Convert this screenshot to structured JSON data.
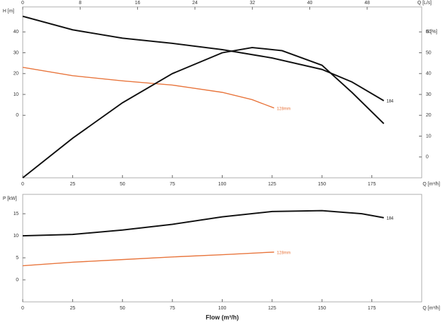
{
  "chart_data": [
    {
      "type": "line",
      "xlabel": "Q [m³/h]",
      "ylabel": "H [m]",
      "y2label": "E [%]",
      "x2label": "Q [L/s]",
      "xlim": [
        0,
        200
      ],
      "xticks": [
        0,
        25,
        50,
        75,
        100,
        125,
        150,
        175
      ],
      "x2lim": [
        0,
        55.6
      ],
      "x2ticks": [
        0,
        8,
        16,
        24,
        32,
        40,
        48
      ],
      "ylim": [
        -30,
        52
      ],
      "yticks": [
        0,
        10,
        20,
        30,
        40
      ],
      "y2lim": [
        -10,
        72
      ],
      "y2ticks": [
        0,
        10,
        20,
        30,
        40,
        50,
        60
      ],
      "series": [
        {
          "name": "184",
          "color": "#111111",
          "x": [
            0,
            25,
            50,
            75,
            100,
            125,
            150,
            165,
            181
          ],
          "values": [
            47.5,
            41,
            37,
            34.5,
            31.5,
            27.5,
            22,
            16,
            7
          ]
        },
        {
          "name": "128mm",
          "color": "#e8743b",
          "x": [
            0,
            25,
            50,
            75,
            100,
            115,
            126
          ],
          "values": [
            23,
            19,
            16.5,
            14.5,
            11,
            7.5,
            3.5
          ]
        },
        {
          "name": "E",
          "color": "#111111",
          "axis": "y2",
          "x": [
            0,
            25,
            50,
            75,
            100,
            115,
            130,
            150,
            165,
            181
          ],
          "values": [
            -10,
            9,
            26,
            40,
            50,
            52.5,
            51,
            44,
            31,
            16
          ]
        }
      ]
    },
    {
      "type": "line",
      "xlabel": "Q [m³/h]",
      "ylabel": "P [kW]",
      "title": "Flow (m³/h)",
      "xlim": [
        0,
        200
      ],
      "xticks": [
        0,
        25,
        50,
        75,
        100,
        125,
        150,
        175
      ],
      "ylim": [
        -5,
        19.4
      ],
      "yticks": [
        0,
        5,
        10,
        15
      ],
      "series": [
        {
          "name": "184",
          "color": "#111111",
          "x": [
            0,
            25,
            50,
            75,
            100,
            125,
            150,
            170,
            181
          ],
          "values": [
            10,
            10.3,
            11.3,
            12.6,
            14.3,
            15.5,
            15.7,
            15,
            14.1
          ]
        },
        {
          "name": "128mm",
          "color": "#e8743b",
          "x": [
            0,
            25,
            50,
            75,
            100,
            126
          ],
          "values": [
            3.2,
            4,
            4.6,
            5.2,
            5.7,
            6.3
          ]
        }
      ]
    }
  ]
}
